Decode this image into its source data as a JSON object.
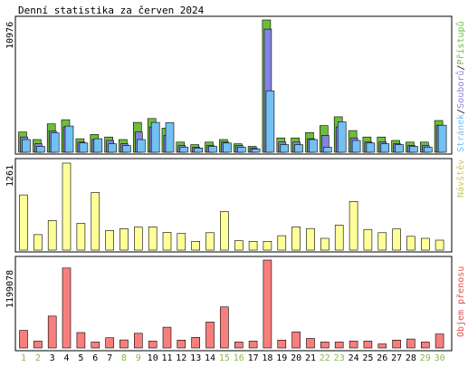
{
  "title": "Denní statistika za červen 2024",
  "colors": {
    "frame": "#000000",
    "background": "#ffffff",
    "weekday_label": "#000000",
    "weekend_label": "#8ab84a",
    "pristupu": "#6ebd3c",
    "soubory": "#8484e0",
    "stranky": "#73c0f2",
    "navstev": "#ffff99",
    "prenos": "#f87e7e",
    "navstev_label": "#c8c864",
    "prenos_label": "#e05050"
  },
  "chart_data": [
    {
      "type": "bar",
      "name": "top",
      "ymax_label": "10976",
      "ylim": [
        0,
        10976
      ],
      "legend": [
        {
          "key": "stranky",
          "label": "Stránek"
        },
        {
          "key": "sep1",
          "label": "/"
        },
        {
          "key": "soubory",
          "label": "Souborů"
        },
        {
          "key": "sep2",
          "label": "/"
        },
        {
          "key": "pristupu",
          "label": "Přístupů"
        }
      ],
      "series": [
        {
          "key": "pristupu",
          "values": [
            1680,
            1050,
            2350,
            2700,
            1120,
            1470,
            1260,
            1050,
            2470,
            2800,
            2000,
            840,
            630,
            840,
            1050,
            700,
            490,
            10976,
            1190,
            1190,
            1630,
            2210,
            2940,
            1800,
            1260,
            1260,
            980,
            840,
            840,
            2630
          ]
        },
        {
          "key": "soubory",
          "values": [
            1260,
            700,
            1750,
            2100,
            840,
            1050,
            980,
            700,
            1680,
            2100,
            1400,
            560,
            420,
            560,
            840,
            560,
            350,
            10220,
            840,
            840,
            1120,
            1400,
            2100,
            1190,
            840,
            840,
            700,
            560,
            560,
            2240
          ]
        },
        {
          "key": "stranky",
          "values": [
            1050,
            490,
            1610,
            2170,
            770,
            1120,
            700,
            560,
            1050,
            2470,
            2450,
            420,
            350,
            490,
            770,
            420,
            280,
            5100,
            630,
            630,
            1050,
            420,
            2520,
            980,
            770,
            700,
            630,
            490,
            420,
            2240
          ]
        }
      ]
    },
    {
      "type": "bar",
      "name": "middle",
      "ymax_label": "1261",
      "ylim": [
        0,
        1261
      ],
      "legend": [
        {
          "key": "navstev",
          "label": "Návštěv"
        }
      ],
      "series": [
        {
          "key": "navstev",
          "values": [
            800,
            225,
            428,
            1261,
            387,
            835,
            284,
            311,
            333,
            338,
            257,
            242,
            127,
            252,
            558,
            137,
            127,
            127,
            209,
            338,
            313,
            171,
            362,
            706,
            299,
            252,
            306,
            200,
            171,
            145
          ]
        }
      ]
    },
    {
      "type": "bar",
      "name": "bottom",
      "ymax_label": "1199078",
      "ylim": [
        0,
        1199078
      ],
      "legend": [
        {
          "key": "prenos",
          "label": "Objem přenosu"
        }
      ],
      "series": [
        {
          "key": "prenos",
          "values": [
            240000,
            94000,
            435000,
            1090000,
            210000,
            82000,
            140000,
            110000,
            200000,
            94000,
            283000,
            108000,
            145000,
            353000,
            560000,
            82000,
            94000,
            1199078,
            108000,
            220000,
            130000,
            82000,
            82000,
            94000,
            94000,
            55000,
            108000,
            122000,
            82000,
            190000
          ]
        }
      ]
    }
  ],
  "days": [
    {
      "label": "1",
      "weekend": true
    },
    {
      "label": "2",
      "weekend": true
    },
    {
      "label": "3",
      "weekend": false
    },
    {
      "label": "4",
      "weekend": false
    },
    {
      "label": "5",
      "weekend": false
    },
    {
      "label": "6",
      "weekend": false
    },
    {
      "label": "7",
      "weekend": false
    },
    {
      "label": "8",
      "weekend": true
    },
    {
      "label": "9",
      "weekend": true
    },
    {
      "label": "10",
      "weekend": false
    },
    {
      "label": "11",
      "weekend": false
    },
    {
      "label": "12",
      "weekend": false
    },
    {
      "label": "13",
      "weekend": false
    },
    {
      "label": "14",
      "weekend": false
    },
    {
      "label": "15",
      "weekend": true
    },
    {
      "label": "16",
      "weekend": true
    },
    {
      "label": "17",
      "weekend": false
    },
    {
      "label": "18",
      "weekend": false
    },
    {
      "label": "19",
      "weekend": false
    },
    {
      "label": "20",
      "weekend": false
    },
    {
      "label": "21",
      "weekend": false
    },
    {
      "label": "22",
      "weekend": true
    },
    {
      "label": "23",
      "weekend": true
    },
    {
      "label": "24",
      "weekend": false
    },
    {
      "label": "25",
      "weekend": false
    },
    {
      "label": "26",
      "weekend": false
    },
    {
      "label": "27",
      "weekend": false
    },
    {
      "label": "28",
      "weekend": false
    },
    {
      "label": "29",
      "weekend": true
    },
    {
      "label": "30",
      "weekend": true
    }
  ]
}
